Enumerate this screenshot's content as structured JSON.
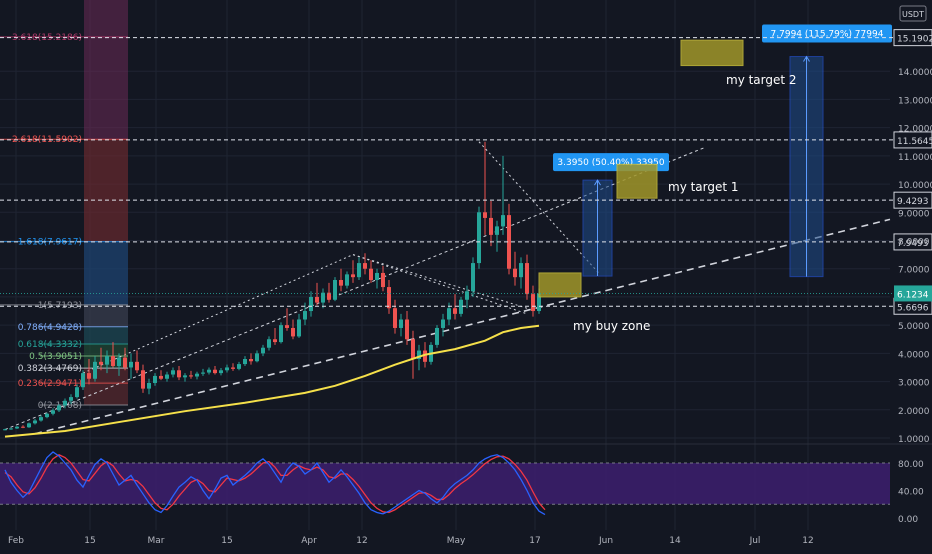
{
  "currency_badge": "USDT",
  "colors": {
    "background": "#131722",
    "grid": "#1f2433",
    "up": "#26a69a",
    "down": "#ef5350",
    "ma": "#f5e04a",
    "stoch_k": "#2962ff",
    "stoch_d": "#f23645",
    "stoch_band": "#3d1f6e",
    "target_box": "#a0962a",
    "measure_box": "#1e4d8c",
    "measure_label": "#2196f3",
    "current_price": "#26a69a"
  },
  "chart_data": {
    "type": "candlestick",
    "x_labels": [
      "Feb",
      "15",
      "Mar",
      "15",
      "Apr",
      "12",
      "May",
      "17",
      "Jun",
      "14",
      "Jul",
      "12"
    ],
    "y_ticks": [
      1.0,
      2.0,
      3.0,
      4.0,
      5.0,
      6.0,
      7.0,
      8.0,
      9.0,
      10.0,
      11.0,
      12.0,
      13.0,
      14.0
    ],
    "price_lines": [
      {
        "label": "15.1902",
        "value": 15.1902
      },
      {
        "label": "11.5645",
        "value": 11.5645
      },
      {
        "label": "9.4293",
        "value": 9.4293
      },
      {
        "label": "7.9493",
        "value": 7.9493
      },
      {
        "label": "5.6696",
        "value": 5.6696
      }
    ],
    "current_price": {
      "label": "6.1234",
      "value": 6.1234
    },
    "fib_levels": [
      {
        "label": "3.618(15.2186)",
        "value": 15.2186,
        "color": "#b03a6a"
      },
      {
        "label": "2.618(11.5902)",
        "value": 11.5902,
        "color": "#ef5350"
      },
      {
        "label": "1.618(7.9617)",
        "value": 7.9617,
        "color": "#2196f3"
      },
      {
        "label": "1(5.7193)",
        "value": 5.7193,
        "color": "#9598a1"
      },
      {
        "label": "0.786(4.9428)",
        "value": 4.9428,
        "color": "#82b1ff"
      },
      {
        "label": "0.618(4.3332)",
        "value": 4.3332,
        "color": "#26a69a"
      },
      {
        "label": "0.5(3.9051)",
        "value": 3.9051,
        "color": "#81c784"
      },
      {
        "label": "0.382(3.4769)",
        "value": 3.4769,
        "color": "#d1d4dc"
      },
      {
        "label": "0.236(2.9471)",
        "value": 2.9471,
        "color": "#ef5350"
      },
      {
        "label": "0(2.1708)",
        "value": 2.1708,
        "color": "#9598a1"
      }
    ],
    "measures": [
      {
        "label": "3.3950 (50.40%) 33950",
        "from": 6.74,
        "to": 10.14
      },
      {
        "label": "7.7994 (115.79%) 77994",
        "from": 6.72,
        "to": 14.52
      }
    ],
    "annotations": {
      "target1": "my target 1",
      "target2": "my target 2",
      "buy_zone": "my buy zone"
    },
    "candles": [
      [
        1.3,
        1.33,
        1.27,
        1.31
      ],
      [
        1.31,
        1.36,
        1.29,
        1.34
      ],
      [
        1.34,
        1.42,
        1.32,
        1.4
      ],
      [
        1.4,
        1.45,
        1.35,
        1.38
      ],
      [
        1.38,
        1.55,
        1.36,
        1.52
      ],
      [
        1.52,
        1.68,
        1.48,
        1.62
      ],
      [
        1.62,
        1.8,
        1.58,
        1.74
      ],
      [
        1.74,
        1.9,
        1.7,
        1.86
      ],
      [
        1.86,
        2.05,
        1.8,
        1.98
      ],
      [
        1.98,
        2.2,
        1.92,
        2.15
      ],
      [
        2.15,
        2.4,
        2.05,
        2.32
      ],
      [
        2.32,
        2.55,
        2.2,
        2.45
      ],
      [
        2.45,
        2.9,
        2.4,
        2.8
      ],
      [
        2.8,
        3.4,
        2.7,
        3.3
      ],
      [
        3.3,
        3.8,
        2.9,
        3.1
      ],
      [
        3.1,
        3.9,
        3.0,
        3.7
      ],
      [
        3.7,
        4.2,
        3.4,
        3.6
      ],
      [
        3.6,
        4.1,
        3.3,
        3.9
      ],
      [
        3.9,
        4.4,
        3.5,
        3.55
      ],
      [
        3.55,
        4.0,
        3.2,
        3.85
      ],
      [
        3.85,
        4.2,
        3.4,
        3.5
      ],
      [
        3.5,
        4.0,
        3.1,
        3.7
      ],
      [
        3.7,
        4.1,
        3.3,
        3.4
      ],
      [
        3.4,
        3.6,
        2.6,
        2.75
      ],
      [
        2.75,
        3.1,
        2.55,
        2.95
      ],
      [
        2.95,
        3.3,
        2.85,
        3.2
      ],
      [
        3.2,
        3.4,
        3.05,
        3.1
      ],
      [
        3.1,
        3.35,
        3.0,
        3.25
      ],
      [
        3.25,
        3.5,
        3.15,
        3.4
      ],
      [
        3.4,
        3.55,
        3.05,
        3.15
      ],
      [
        3.15,
        3.3,
        3.0,
        3.22
      ],
      [
        3.22,
        3.38,
        3.1,
        3.18
      ],
      [
        3.18,
        3.35,
        3.08,
        3.28
      ],
      [
        3.28,
        3.45,
        3.2,
        3.32
      ],
      [
        3.32,
        3.5,
        3.25,
        3.42
      ],
      [
        3.42,
        3.55,
        3.25,
        3.3
      ],
      [
        3.3,
        3.48,
        3.22,
        3.4
      ],
      [
        3.4,
        3.6,
        3.32,
        3.5
      ],
      [
        3.5,
        3.65,
        3.38,
        3.45
      ],
      [
        3.45,
        3.7,
        3.4,
        3.62
      ],
      [
        3.62,
        3.9,
        3.55,
        3.8
      ],
      [
        3.8,
        4.0,
        3.6,
        3.72
      ],
      [
        3.72,
        4.1,
        3.68,
        4.0
      ],
      [
        4.0,
        4.3,
        3.9,
        4.2
      ],
      [
        4.2,
        4.6,
        4.1,
        4.5
      ],
      [
        4.5,
        4.9,
        4.3,
        4.4
      ],
      [
        4.4,
        5.1,
        4.35,
        5.0
      ],
      [
        5.0,
        5.6,
        4.8,
        4.9
      ],
      [
        4.9,
        5.2,
        4.5,
        4.6
      ],
      [
        4.6,
        5.4,
        4.55,
        5.2
      ],
      [
        5.2,
        5.8,
        5.0,
        5.5
      ],
      [
        5.5,
        6.2,
        5.3,
        6.0
      ],
      [
        6.0,
        6.5,
        5.7,
        5.8
      ],
      [
        5.8,
        6.3,
        5.6,
        6.15
      ],
      [
        6.15,
        6.5,
        5.8,
        5.9
      ],
      [
        5.9,
        6.7,
        5.85,
        6.6
      ],
      [
        6.6,
        7.0,
        6.2,
        6.4
      ],
      [
        6.4,
        6.9,
        6.3,
        6.8
      ],
      [
        6.8,
        7.3,
        6.5,
        6.7
      ],
      [
        6.7,
        7.4,
        6.6,
        7.2
      ],
      [
        7.2,
        7.55,
        6.8,
        7.0
      ],
      [
        7.0,
        7.3,
        6.5,
        6.6
      ],
      [
        6.6,
        7.0,
        6.3,
        6.85
      ],
      [
        6.85,
        7.1,
        6.2,
        6.35
      ],
      [
        6.35,
        6.6,
        5.4,
        5.6
      ],
      [
        5.6,
        5.9,
        4.7,
        4.9
      ],
      [
        4.9,
        5.4,
        4.6,
        5.2
      ],
      [
        5.2,
        5.5,
        4.3,
        4.5
      ],
      [
        4.5,
        4.8,
        3.1,
        3.8
      ],
      [
        3.8,
        4.3,
        3.4,
        4.1
      ],
      [
        4.1,
        4.4,
        3.5,
        3.7
      ],
      [
        3.7,
        4.4,
        3.6,
        4.3
      ],
      [
        4.3,
        5.0,
        4.2,
        4.9
      ],
      [
        4.9,
        5.4,
        4.6,
        5.2
      ],
      [
        5.2,
        5.8,
        5.0,
        5.6
      ],
      [
        5.6,
        6.1,
        5.2,
        5.4
      ],
      [
        5.4,
        6.0,
        5.3,
        5.9
      ],
      [
        5.9,
        6.4,
        5.6,
        6.2
      ],
      [
        6.2,
        7.4,
        6.0,
        7.2
      ],
      [
        7.2,
        9.2,
        7.0,
        9.0
      ],
      [
        9.0,
        11.5,
        8.2,
        8.8
      ],
      [
        8.8,
        9.4,
        7.8,
        8.2
      ],
      [
        8.2,
        8.7,
        7.6,
        8.5
      ],
      [
        8.5,
        11.0,
        8.2,
        8.9
      ],
      [
        8.9,
        9.3,
        6.8,
        7.0
      ],
      [
        7.0,
        7.6,
        6.4,
        6.7
      ],
      [
        6.7,
        7.4,
        6.3,
        7.2
      ],
      [
        7.2,
        7.5,
        5.9,
        6.1
      ],
      [
        6.1,
        6.4,
        5.3,
        5.5
      ],
      [
        5.5,
        6.3,
        5.4,
        6.12
      ]
    ],
    "ma_points": [
      [
        0,
        1.05
      ],
      [
        10,
        1.25
      ],
      [
        20,
        1.6
      ],
      [
        30,
        1.95
      ],
      [
        40,
        2.25
      ],
      [
        50,
        2.6
      ],
      [
        55,
        2.85
      ],
      [
        60,
        3.2
      ],
      [
        65,
        3.6
      ],
      [
        70,
        3.95
      ],
      [
        75,
        4.15
      ],
      [
        80,
        4.45
      ],
      [
        83,
        4.75
      ],
      [
        86,
        4.9
      ],
      [
        89,
        4.98
      ]
    ],
    "stochastic": {
      "levels": [
        80,
        20
      ],
      "y_ticks": [
        0,
        40,
        80
      ],
      "k": [
        70,
        52,
        40,
        30,
        38,
        55,
        72,
        88,
        96,
        90,
        80,
        70,
        55,
        45,
        62,
        78,
        86,
        80,
        64,
        48,
        55,
        62,
        48,
        35,
        22,
        12,
        8,
        18,
        32,
        45,
        52,
        60,
        55,
        40,
        28,
        42,
        58,
        62,
        48,
        55,
        62,
        70,
        80,
        86,
        78,
        65,
        52,
        70,
        80,
        75,
        64,
        70,
        80,
        66,
        52,
        60,
        70,
        60,
        48,
        36,
        22,
        12,
        8,
        6,
        10,
        16,
        22,
        28,
        34,
        40,
        36,
        28,
        22,
        30,
        42,
        50,
        56,
        62,
        70,
        80,
        86,
        90,
        92,
        88,
        80,
        70,
        56,
        40,
        22,
        10,
        5
      ],
      "d": [
        66,
        60,
        48,
        38,
        35,
        44,
        58,
        74,
        86,
        92,
        88,
        80,
        68,
        56,
        54,
        65,
        76,
        82,
        76,
        64,
        54,
        56,
        54,
        46,
        34,
        22,
        14,
        12,
        20,
        32,
        42,
        52,
        56,
        50,
        40,
        38,
        48,
        58,
        56,
        54,
        58,
        64,
        72,
        80,
        82,
        74,
        62,
        62,
        70,
        76,
        72,
        70,
        74,
        70,
        60,
        58,
        64,
        64,
        56,
        46,
        34,
        22,
        14,
        9,
        8,
        12,
        18,
        24,
        30,
        36,
        37,
        33,
        27,
        27,
        34,
        43,
        50,
        56,
        63,
        71,
        79,
        85,
        89,
        90,
        86,
        78,
        68,
        55,
        38,
        22,
        12
      ]
    }
  }
}
